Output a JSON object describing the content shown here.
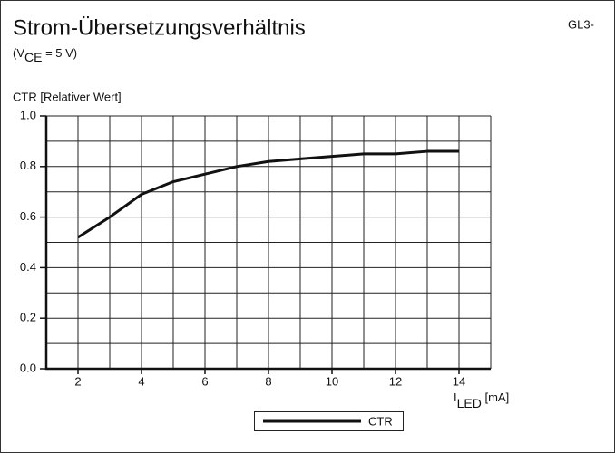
{
  "chart_data": {
    "type": "line",
    "title": "Strom-Übersetzungsverhältnis",
    "code": "GL3-",
    "subtitle_parts": [
      "(V",
      "CE",
      " = 5 V)"
    ],
    "ylabel": "CTR [Relativer Wert]",
    "xlabel_parts": [
      "I",
      "LED",
      " [mA]"
    ],
    "x": [
      2,
      3,
      4,
      5,
      6,
      7,
      8,
      9,
      10,
      11,
      12,
      13,
      14
    ],
    "series": [
      {
        "name": "CTR",
        "color": "#111111",
        "values": [
          0.52,
          0.6,
          0.69,
          0.74,
          0.77,
          0.8,
          0.82,
          0.83,
          0.84,
          0.85,
          0.85,
          0.86,
          0.86
        ]
      }
    ],
    "xlim": [
      1,
      15
    ],
    "xticks": [
      2,
      4,
      6,
      8,
      10,
      12,
      14
    ],
    "x_minor_ticks": [
      1,
      3,
      5,
      7,
      9,
      11,
      13,
      15
    ],
    "ylim": [
      0,
      1
    ],
    "yticks": [
      {
        "value": 0,
        "label": "0.0"
      },
      0.2,
      0.4,
      0.6,
      0.8,
      {
        "value": 1,
        "label": "1.0"
      }
    ],
    "y_minor_ticks": [
      0.1,
      0.3,
      0.5,
      0.7,
      0.9
    ],
    "grid": true,
    "legend": "bottom"
  }
}
